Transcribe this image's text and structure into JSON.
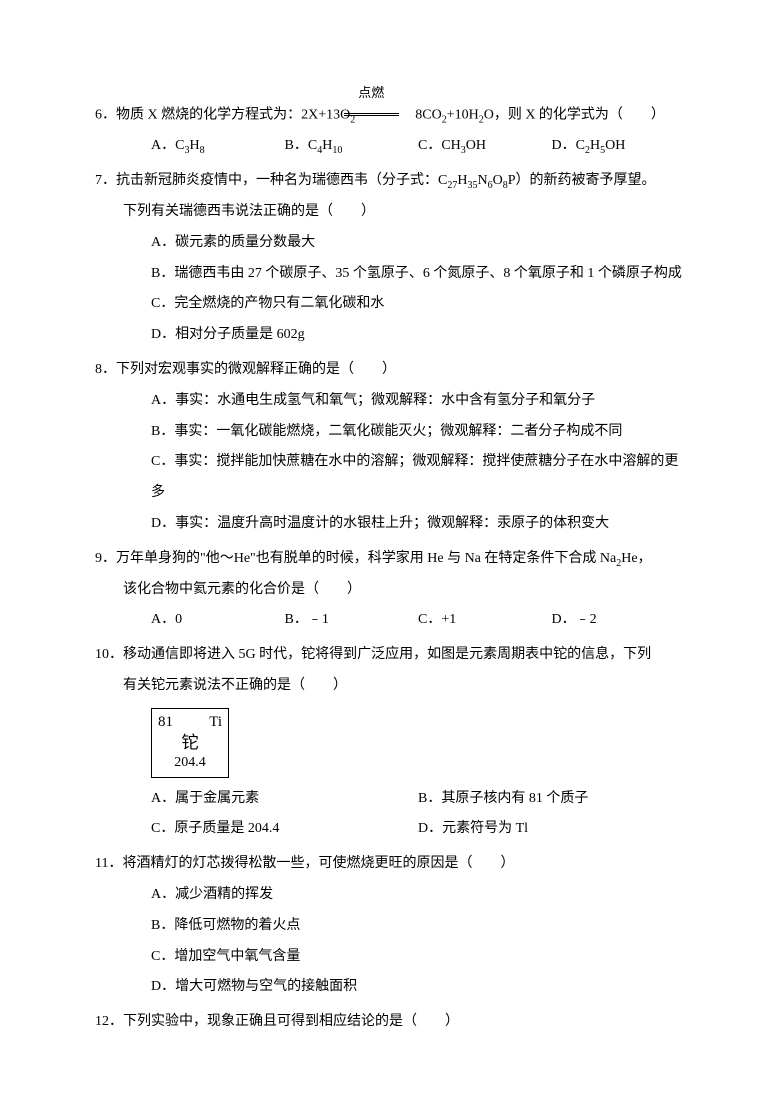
{
  "q6": {
    "num": "6．",
    "stem_a": "物质 X 燃烧的化学方程式为：2X+13O",
    "stem_b": "8CO",
    "stem_c": "+10H",
    "stem_d": "O，则 X 的化学式为（　　）",
    "reaction_label": "点燃",
    "opts": {
      "A_pre": "A．C",
      "A_sub1": "3",
      "A_mid": "H",
      "A_sub2": "8",
      "B_pre": "B．C",
      "B_sub1": "4",
      "B_mid": "H",
      "B_sub2": "10",
      "C_pre": "C．CH",
      "C_sub1": "3",
      "C_mid": "OH",
      "D_pre": "D．C",
      "D_sub1": "2",
      "D_mid": "H",
      "D_sub2": "5",
      "D_end": "OH"
    }
  },
  "q7": {
    "num": "7．",
    "stem1_a": "抗击新冠肺炎疫情中，一种名为瑞德西韦（分子式：C",
    "stem1_b": "H",
    "stem1_c": "N",
    "stem1_d": "O",
    "stem1_e": "P）的新药被寄予厚望。",
    "sub1": "27",
    "sub2": "35",
    "sub3": "6",
    "sub4": "8",
    "stem2": "下列有关瑞德西韦说法正确的是（　　）",
    "A": "A．碳元素的质量分数最大",
    "B": "B．瑞德西韦由 27 个碳原子、35 个氢原子、6 个氮原子、8 个氧原子和 1 个磷原子构成",
    "C": "C．完全燃烧的产物只有二氧化碳和水",
    "D": "D．相对分子质量是 602g"
  },
  "q8": {
    "num": "8．",
    "stem": "下列对宏观事实的微观解释正确的是（　　）",
    "A": "A．事实：水通电生成氢气和氧气；微观解释：水中含有氢分子和氧分子",
    "B": "B．事实：一氧化碳能燃烧，二氧化碳能灭火；微观解释：二者分子构成不同",
    "C": "C．事实：搅拌能加快蔗糖在水中的溶解；微观解释：搅拌使蔗糖分子在水中溶解的更多",
    "D": "D．事实：温度升高时温度计的水银柱上升；微观解释：汞原子的体积变大"
  },
  "q9": {
    "num": "9．",
    "stem1_a": "万年单身狗的\"他～He\"也有脱单的时候，科学家用 He 与 Na 在特定条件下合成 Na",
    "stem1_b": "He，",
    "sub1": "2",
    "stem2": "该化合物中氦元素的化合价是（　　）",
    "A": "A．0",
    "B": "B．﹣1",
    "C": "C．+1",
    "D": "D．﹣2"
  },
  "q10": {
    "num": "10．",
    "stem1": "移动通信即将进入 5G 时代，铊将得到广泛应用，如图是元素周期表中铊的信息，下列",
    "stem2": "有关铊元素说法不正确的是（　　）",
    "box": {
      "num": "81",
      "sym": "Ti",
      "name": "铊",
      "mass": "204.4"
    },
    "A": "A．属于金属元素",
    "B": "B．其原子核内有 81 个质子",
    "C": "C．原子质量是 204.4",
    "D": "D．元素符号为 Tl"
  },
  "q11": {
    "num": "11．",
    "stem": "将酒精灯的灯芯拨得松散一些，可使燃烧更旺的原因是（　　）",
    "A": "A．减少酒精的挥发",
    "B": "B．降低可燃物的着火点",
    "C": "C．增加空气中氧气含量",
    "D": "D．增大可燃物与空气的接触面积"
  },
  "q12": {
    "num": "12．",
    "stem": "下列实验中，现象正确且可得到相应结论的是（　　）"
  }
}
